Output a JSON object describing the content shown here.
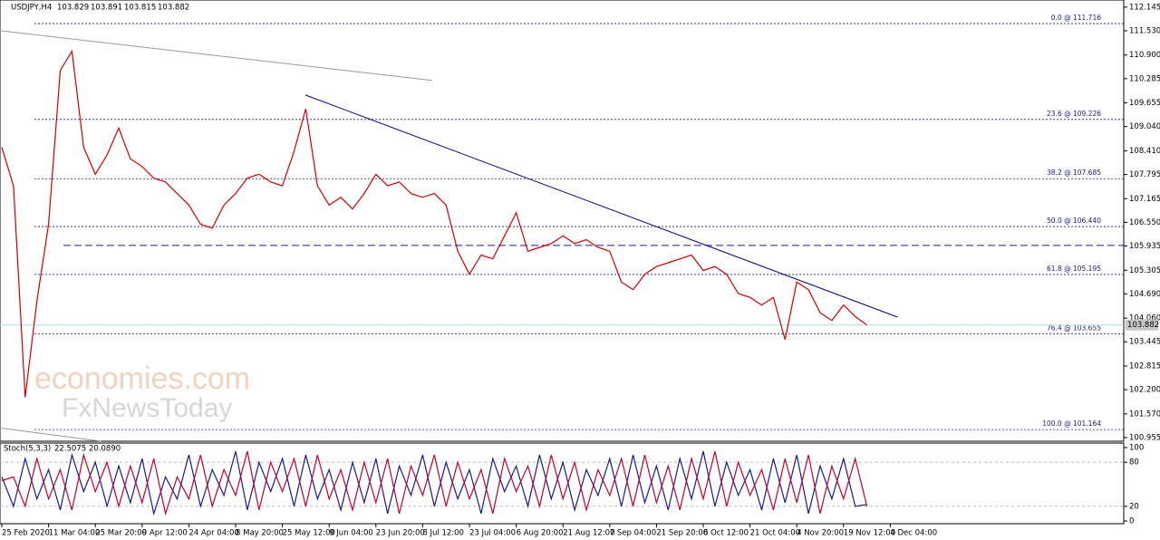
{
  "chart_data": [
    {
      "type": "line",
      "title": "USDJPY,H4",
      "ohlc": [
        103.829,
        103.891,
        103.815,
        103.882
      ],
      "color": "#d00000",
      "categories": [
        "25 Feb 2020",
        null,
        null,
        null,
        "11 Mar 04:00",
        null,
        null,
        null,
        "25 Mar 20:00",
        null,
        null,
        null,
        "9 Apr 12:00",
        null,
        null,
        null,
        "24 Apr 04:00",
        null,
        null,
        null,
        "8 May 20:00",
        null,
        null,
        null,
        "25 May 12:00",
        null,
        null,
        null,
        "9 Jun 04:00",
        null,
        null,
        null,
        "23 Jun 20:00",
        null,
        null,
        null,
        "8 Jul 12:00",
        null,
        null,
        null,
        "23 Jul 04:00",
        null,
        null,
        null,
        "6 Aug 20:00",
        null,
        null,
        null,
        "21 Aug 12:00",
        null,
        null,
        null,
        "7 Sep 04:00",
        null,
        null,
        null,
        "21 Sep 20:00",
        null,
        null,
        null,
        "6 Oct 12:00",
        null,
        null,
        null,
        "21 Oct 04:00",
        null,
        null,
        null,
        "4 Nov 20:00",
        null,
        null,
        null,
        "19 Nov 12:00",
        null,
        null,
        null,
        "4 Dec 04:00",
        null,
        null,
        null,
        null,
        null,
        null,
        null,
        null,
        null,
        null,
        null,
        null,
        null,
        null,
        null,
        null,
        null,
        null,
        null
      ],
      "values": [
        108.5,
        107.5,
        102.0,
        104.5,
        106.5,
        110.5,
        111.0,
        108.5,
        107.8,
        108.3,
        109.0,
        108.2,
        108.0,
        107.7,
        107.6,
        107.3,
        107.0,
        106.5,
        106.4,
        107.0,
        107.3,
        107.7,
        107.8,
        107.6,
        107.5,
        108.4,
        109.5,
        107.5,
        107.0,
        107.2,
        106.9,
        107.3,
        107.8,
        107.5,
        107.6,
        107.3,
        107.2,
        107.3,
        107.0,
        105.8,
        105.2,
        105.7,
        105.6,
        106.2,
        106.8,
        105.8,
        105.9,
        106.0,
        106.2,
        106.0,
        106.1,
        105.9,
        105.8,
        105.0,
        104.8,
        105.2,
        105.4,
        105.5,
        105.6,
        105.7,
        105.3,
        105.4,
        105.2,
        104.7,
        104.6,
        104.4,
        104.6,
        103.5,
        105.0,
        104.8,
        104.2,
        104.0,
        104.4,
        104.1,
        103.882,
        null,
        null,
        null,
        null,
        null,
        null,
        null,
        null,
        null,
        null,
        null,
        null,
        null,
        null,
        null,
        null,
        null,
        null,
        null,
        null,
        null
      ],
      "ylim": [
        100.86,
        112.33
      ],
      "yticks": [
        112.145,
        {
          "value": 111.53,
          "label": "111.530"
        },
        {
          "value": 110.9,
          "label": "110.900"
        },
        110.285,
        109.655,
        {
          "value": 109.04,
          "label": "109.040"
        },
        {
          "value": 108.41,
          "label": "108.410"
        },
        107.795,
        107.165,
        {
          "value": 106.55,
          "label": "106.550"
        },
        105.935,
        105.305,
        {
          "value": 104.69,
          "label": "104.690"
        },
        {
          "value": 104.06,
          "label": "104.060"
        },
        103.445,
        102.815,
        {
          "value": 102.2,
          "label": "102.200"
        },
        {
          "value": 101.57,
          "label": "101.570"
        },
        100.955
      ],
      "last_price": 103.882,
      "fib_levels": [
        {
          "value": 111.716,
          "label": "0.0 @ 111.716"
        },
        {
          "value": 109.226,
          "label": "23.6 @ 109.226"
        },
        {
          "value": 107.685,
          "label": "38.2 @ 107.685"
        },
        {
          "value": 106.44,
          "label": "50.0 @ 106.440"
        },
        {
          "value": 105.195,
          "label": "61.8 @ 105.195"
        },
        {
          "value": 103.655,
          "label": "76.4 @ 103.655"
        },
        {
          "value": 101.164,
          "label": "100.0 @ 101.164"
        }
      ],
      "dashed_level": 105.95,
      "trendlines": [
        {
          "color": "#00008b",
          "from": [
            25.97,
            109.86
          ],
          "to": [
            76.6,
            104.09
          ]
        },
        {
          "color": "#999999",
          "from": [
            -1.55,
            111.58
          ],
          "to": [
            36.8,
            110.24
          ]
        },
        {
          "color": "#999999",
          "from": [
            -1.55,
            101.26
          ],
          "to": [
            8.5,
            100.86
          ]
        }
      ],
      "watermark": [
        "economies.com",
        "FxNewsToday"
      ]
    },
    {
      "type": "line",
      "title": "Stoch(5,3,3)",
      "header_values": [
        22.5075,
        {
          "value": 20.089,
          "label": "20.0890"
        }
      ],
      "ylim": [
        -3.7,
        106.2
      ],
      "yticks": [
        100,
        80,
        20,
        0
      ],
      "levels": [
        80,
        20
      ],
      "series": [
        {
          "color": "#1a1a8c",
          "values": [
            60,
            20,
            85,
            30,
            70,
            15,
            90,
            40,
            80,
            20,
            75,
            25,
            85,
            10,
            60,
            30,
            90,
            20,
            70,
            35,
            95,
            15,
            80,
            40,
            85,
            20,
            90,
            30,
            70,
            15,
            80,
            25,
            85,
            10,
            75,
            35,
            90,
            20,
            80,
            30,
            70,
            10,
            85,
            40,
            75,
            20,
            90,
            30,
            80,
            15,
            70,
            35,
            85,
            20,
            90,
            25,
            75,
            15,
            85,
            30,
            95,
            20,
            80,
            35,
            70,
            15,
            85,
            25,
            90,
            10,
            75,
            30,
            85,
            20,
            22.5075,
            null,
            null,
            null,
            null,
            null,
            null,
            null,
            null,
            null,
            null,
            null,
            null,
            null,
            null,
            null,
            null,
            null,
            null,
            null,
            null,
            null
          ]
        },
        {
          "color": "#c00030",
          "values": [
            55,
            60,
            20,
            85,
            30,
            70,
            15,
            90,
            40,
            80,
            20,
            75,
            25,
            85,
            10,
            60,
            30,
            90,
            20,
            70,
            35,
            95,
            15,
            80,
            40,
            85,
            20,
            90,
            30,
            70,
            15,
            80,
            25,
            85,
            10,
            75,
            35,
            90,
            20,
            80,
            30,
            70,
            10,
            85,
            40,
            75,
            20,
            90,
            30,
            80,
            15,
            70,
            35,
            85,
            20,
            90,
            25,
            75,
            15,
            85,
            30,
            95,
            20,
            80,
            35,
            70,
            15,
            85,
            25,
            90,
            10,
            75,
            30,
            85,
            20.089,
            null,
            null,
            null,
            null,
            null,
            null,
            null,
            null,
            null,
            null,
            null,
            null,
            null,
            null,
            null,
            null,
            null,
            null,
            null,
            null,
            null
          ]
        }
      ]
    }
  ]
}
